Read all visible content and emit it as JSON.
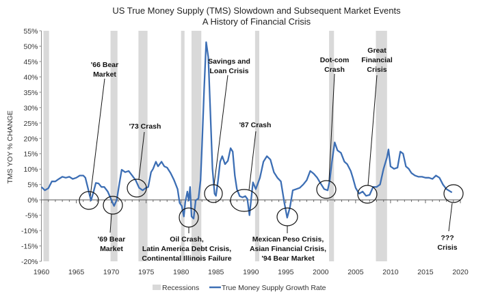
{
  "chart_data": {
    "type": "line",
    "title": "US True Money Supply (TMS) Slowdown and Subsequent Market Events",
    "subtitle": "A History of Financial Crisis",
    "xlabel": "",
    "ylabel": "TMS YOY % CHANGE",
    "xlim": [
      1960,
      2020
    ],
    "ylim": [
      -20,
      55
    ],
    "x_ticks": [
      "1960",
      "1965",
      "1970",
      "1975",
      "1980",
      "1985",
      "1990",
      "1995",
      "2000",
      "2005",
      "2010",
      "2015",
      "2020"
    ],
    "y_ticks": [
      "55%",
      "50%",
      "45%",
      "40%",
      "35%",
      "30%",
      "25%",
      "20%",
      "15%",
      "10%",
      "5%",
      "0%",
      "-5%",
      "-10%",
      "-15%",
      "-20%"
    ],
    "grid": false,
    "legend_position": "bottom",
    "legend": [
      {
        "label": "Recessions",
        "color": "#d9d9d9"
      },
      {
        "label": "True Money Supply Growth Rate",
        "color": "#3c6eb4"
      }
    ],
    "recessions": [
      [
        1960.3,
        1961.1
      ],
      [
        1969.9,
        1970.9
      ],
      [
        1973.9,
        1975.2
      ],
      [
        1980.0,
        1980.5
      ],
      [
        1981.5,
        1982.9
      ],
      [
        1990.6,
        1991.2
      ],
      [
        2001.2,
        2001.9
      ],
      [
        2007.9,
        2009.5
      ]
    ],
    "series": [
      {
        "name": "True Money Supply Growth Rate",
        "color": "#3c6eb4",
        "x": [
          1960.0,
          1960.5,
          1961.0,
          1961.5,
          1962.0,
          1962.5,
          1963.0,
          1963.5,
          1964.0,
          1964.5,
          1965.0,
          1965.5,
          1966.0,
          1966.3,
          1966.7,
          1967.1,
          1967.4,
          1967.8,
          1968.2,
          1968.6,
          1969.0,
          1969.5,
          1970.0,
          1970.4,
          1970.8,
          1971.2,
          1971.5,
          1972.0,
          1972.5,
          1973.0,
          1973.5,
          1974.0,
          1974.5,
          1975.0,
          1975.3,
          1975.7,
          1976.0,
          1976.4,
          1976.7,
          1977.2,
          1977.6,
          1978.0,
          1978.5,
          1979.0,
          1979.5,
          1979.8,
          1980.1,
          1980.4,
          1980.6,
          1980.9,
          1981.1,
          1981.3,
          1981.5,
          1981.8,
          1982.1,
          1982.5,
          1982.8,
          1983.0,
          1983.3,
          1983.6,
          1983.9,
          1984.2,
          1984.5,
          1984.8,
          1985.0,
          1985.3,
          1985.6,
          1985.9,
          1986.3,
          1986.7,
          1987.1,
          1987.4,
          1987.7,
          1988.0,
          1988.4,
          1988.8,
          1989.2,
          1989.5,
          1989.8,
          1990.3,
          1990.7,
          1991.3,
          1991.8,
          1992.3,
          1992.8,
          1993.3,
          1993.8,
          1994.3,
          1994.8,
          1995.2,
          1995.6,
          1996.0,
          1996.5,
          1997.0,
          1997.5,
          1998.0,
          1998.5,
          1999.0,
          1999.5,
          2000.0,
          2000.5,
          2001.0,
          2001.3,
          2001.6,
          2002.0,
          2002.4,
          2002.9,
          2003.4,
          2003.8,
          2004.3,
          2004.6,
          2005.0,
          2005.5,
          2006.0,
          2006.5,
          2007.0,
          2007.5,
          2008.0,
          2008.5,
          2009.0,
          2009.5,
          2009.7,
          2010.0,
          2010.5,
          2011.0,
          2011.4,
          2011.8,
          2012.2,
          2012.6,
          2013.0,
          2013.5,
          2014.0,
          2014.5,
          2015.0,
          2015.5,
          2016.0,
          2016.5,
          2017.0,
          2017.5,
          2018.0,
          2018.8
        ],
        "y": [
          4.2,
          3.1,
          3.8,
          6.0,
          6.0,
          6.8,
          7.5,
          7.2,
          7.5,
          6.8,
          7.2,
          7.9,
          7.9,
          7.2,
          3.5,
          -0.2,
          2.0,
          5.5,
          5.3,
          4.2,
          4.2,
          2.7,
          0.1,
          -2.0,
          0.0,
          5.7,
          9.8,
          9.0,
          9.4,
          7.9,
          6.4,
          3.9,
          3.1,
          3.9,
          4.2,
          9.0,
          10.1,
          12.4,
          10.9,
          12.4,
          10.9,
          10.5,
          8.7,
          6.4,
          3.5,
          -1.0,
          -2.0,
          -5.4,
          -0.8,
          2.7,
          -0.2,
          4.2,
          -5.4,
          -6.1,
          -0.2,
          0.5,
          6.4,
          17.6,
          36.0,
          51.3,
          46.4,
          28.7,
          10.1,
          2.0,
          1.3,
          6.4,
          12.4,
          14.2,
          11.6,
          12.7,
          16.8,
          15.7,
          7.9,
          3.5,
          1.2,
          0.8,
          1.2,
          0.3,
          -5.0,
          5.7,
          3.5,
          7.2,
          12.4,
          14.2,
          13.1,
          9.0,
          7.2,
          6.0,
          -1.0,
          -5.8,
          -2.4,
          3.1,
          3.5,
          3.9,
          5.0,
          6.4,
          9.4,
          8.5,
          7.2,
          5.3,
          3.5,
          3.1,
          6.4,
          12.4,
          18.7,
          16.1,
          15.3,
          12.4,
          11.6,
          9.4,
          7.2,
          3.9,
          2.0,
          2.7,
          1.3,
          1.6,
          4.2,
          4.2,
          5.0,
          10.1,
          13.9,
          16.4,
          10.9,
          10.1,
          10.5,
          15.7,
          15.0,
          10.9,
          10.1,
          8.7,
          7.9,
          7.5,
          7.5,
          7.2,
          7.2,
          6.8,
          7.9,
          7.2,
          5.0,
          3.5,
          2.4
        ]
      }
    ],
    "annotations": [
      {
        "lines": [
          "'66 Bear",
          "Market"
        ]
      },
      {
        "lines": [
          "'69 Bear",
          "Market"
        ]
      },
      {
        "lines": [
          "'73 Crash"
        ]
      },
      {
        "lines": [
          "Oil Crash,",
          "Latin America Debt Crisis,",
          "Continental Illinois Failure"
        ]
      },
      {
        "lines": [
          "Savings and",
          "Loan Crisis"
        ]
      },
      {
        "lines": [
          "'87 Crash"
        ]
      },
      {
        "lines": [
          "Mexican Peso Crisis,",
          "Asian Financial Crisis,",
          "'94 Bear Market"
        ]
      },
      {
        "lines": [
          "Dot-com",
          "Crash"
        ]
      },
      {
        "lines": [
          "Great",
          "Financial",
          "Crisis"
        ]
      },
      {
        "lines": [
          "???",
          "Crisis"
        ]
      }
    ]
  }
}
